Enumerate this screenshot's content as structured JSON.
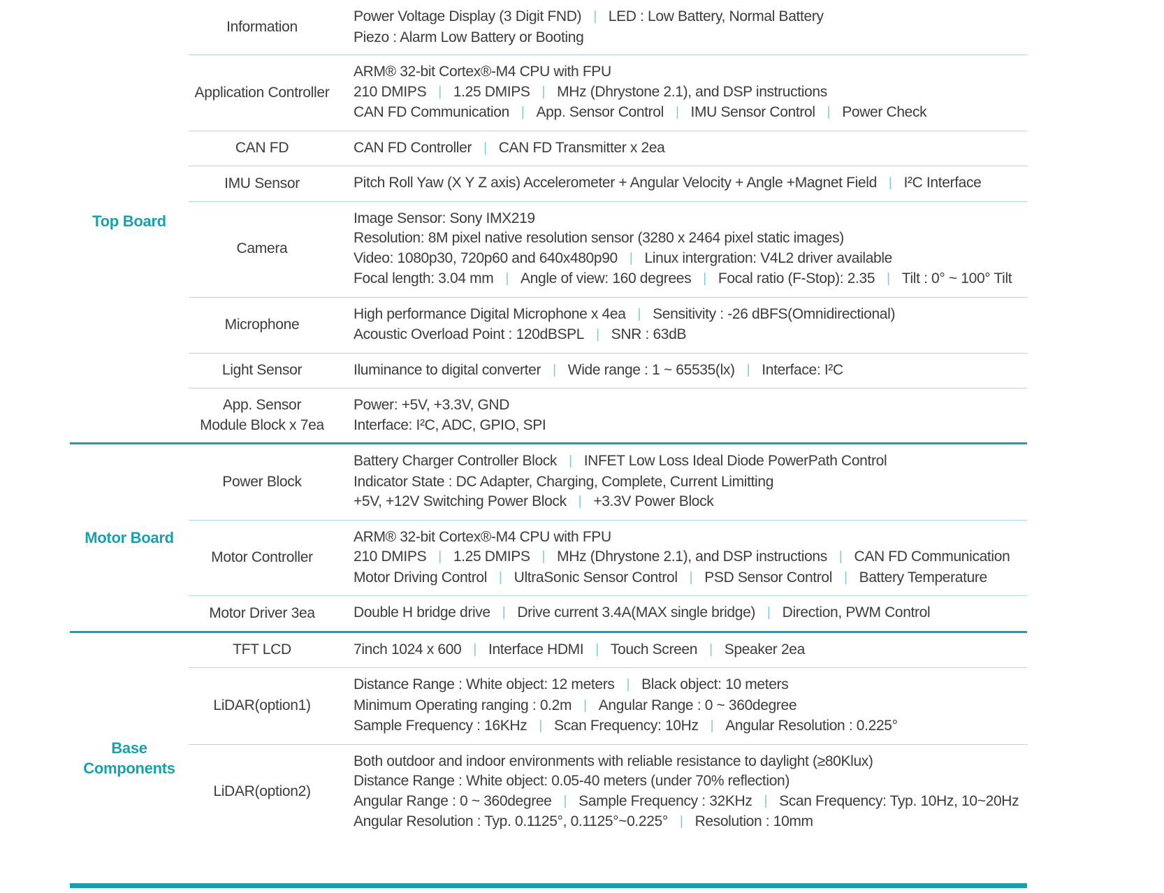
{
  "colors": {
    "accent_teal": "#1b9fae",
    "section_divider": "#1b9fae",
    "row_divider": "#a9d8e3",
    "separator": "#7fc9da",
    "body_text": "#3c3c3c"
  },
  "separator_glyph": "|",
  "sections": [
    {
      "label": "Top Board",
      "rows": [
        {
          "label": [
            "Information"
          ],
          "lines": [
            [
              "Power Voltage Display (3 Digit FND)",
              "LED : Low Battery, Normal Battery"
            ],
            [
              "Piezo : Alarm Low Battery or Booting"
            ]
          ]
        },
        {
          "label": [
            "Application Controller"
          ],
          "lines": [
            [
              "ARM® 32-bit Cortex®-M4 CPU with FPU"
            ],
            [
              "210 DMIPS",
              "1.25 DMIPS",
              "MHz (Dhrystone 2.1), and DSP instructions"
            ],
            [
              "CAN FD Communication",
              "App. Sensor Control",
              "IMU Sensor Control",
              "Power Check"
            ]
          ]
        },
        {
          "label": [
            "CAN FD"
          ],
          "lines": [
            [
              "CAN FD Controller",
              "CAN FD Transmitter x 2ea"
            ]
          ]
        },
        {
          "label": [
            "IMU Sensor"
          ],
          "lines": [
            [
              "Pitch Roll Yaw (X Y Z axis) Accelerometer + Angular Velocity + Angle +Magnet Field",
              "I²C Interface"
            ]
          ]
        },
        {
          "label": [
            "Camera"
          ],
          "lines": [
            [
              "Image Sensor: Sony IMX219"
            ],
            [
              "Resolution: 8M pixel native resolution sensor (3280 x 2464 pixel static images)"
            ],
            [
              "Video: 1080p30, 720p60 and 640x480p90",
              "Linux intergration: V4L2 driver available"
            ],
            [
              "Focal length: 3.04 mm",
              "Angle of view: 160 degrees",
              "Focal ratio (F-Stop): 2.35",
              "Tilt : 0° ~ 100° Tilt"
            ]
          ]
        },
        {
          "label": [
            "Microphone"
          ],
          "lines": [
            [
              "High performance Digital Microphone x 4ea",
              "Sensitivity : -26 dBFS(Omnidirectional)"
            ],
            [
              "Acoustic Overload Point : 120dBSPL",
              "SNR : 63dB"
            ]
          ]
        },
        {
          "label": [
            "Light Sensor"
          ],
          "lines": [
            [
              "Iluminance to digital converter",
              "Wide range : 1 ~ 65535(lx)",
              "Interface: I²C"
            ]
          ]
        },
        {
          "label": [
            "App. Sensor",
            "Module Block x 7ea"
          ],
          "lines": [
            [
              "Power: +5V, +3.3V, GND"
            ],
            [
              "Interface: I²C, ADC, GPIO, SPI"
            ]
          ]
        }
      ]
    },
    {
      "label": "Motor Board",
      "rows": [
        {
          "label": [
            "Power Block"
          ],
          "lines": [
            [
              "Battery Charger Controller Block",
              "INFET Low Loss Ideal Diode PowerPath Control"
            ],
            [
              "Indicator State : DC Adapter, Charging, Complete, Current Limitting"
            ],
            [
              "+5V, +12V Switching Power Block",
              "+3.3V Power Block"
            ]
          ]
        },
        {
          "label": [
            "Motor Controller"
          ],
          "lines": [
            [
              "ARM® 32-bit Cortex®-M4 CPU with FPU"
            ],
            [
              "210 DMIPS",
              "1.25 DMIPS",
              "MHz (Dhrystone 2.1), and DSP instructions",
              "CAN FD Communication"
            ],
            [
              "Motor Driving Control",
              "UltraSonic Sensor Control",
              "PSD Sensor Control",
              "Battery Temperature"
            ]
          ]
        },
        {
          "label": [
            "Motor Driver 3ea"
          ],
          "lines": [
            [
              "Double H bridge drive",
              "Drive current 3.4A(MAX single bridge)",
              "Direction, PWM Control"
            ]
          ]
        }
      ]
    },
    {
      "label": "Base Components",
      "rows": [
        {
          "label": [
            "TFT LCD"
          ],
          "lines": [
            [
              "7inch 1024 x 600",
              "Interface HDMI",
              "Touch Screen",
              "Speaker 2ea"
            ]
          ]
        },
        {
          "label": [
            "LiDAR(option1)"
          ],
          "lines": [
            [
              "Distance Range : White object: 12 meters",
              "Black object: 10 meters"
            ],
            [
              "Minimum Operating ranging : 0.2m",
              "Angular Range : 0 ~ 360degree"
            ],
            [
              "Sample Frequency : 16KHz",
              "Scan Frequency: 10Hz",
              "Angular Resolution : 0.225°"
            ]
          ]
        },
        {
          "label": [
            "LiDAR(option2)"
          ],
          "lines": [
            [
              "Both outdoor and indoor environments with reliable resistance to daylight (≥80Klux)"
            ],
            [
              "Distance Range : White object: 0.05-40 meters (under 70% reflection)"
            ],
            [
              "Angular Range : 0 ~ 360degree",
              "Sample Frequency : 32KHz",
              "Scan Frequency: Typ. 10Hz, 10~20Hz"
            ],
            [
              "Angular Resolution : Typ. 0.1125°, 0.1125°~0.225°",
              "Resolution : 10mm"
            ]
          ]
        }
      ]
    }
  ]
}
